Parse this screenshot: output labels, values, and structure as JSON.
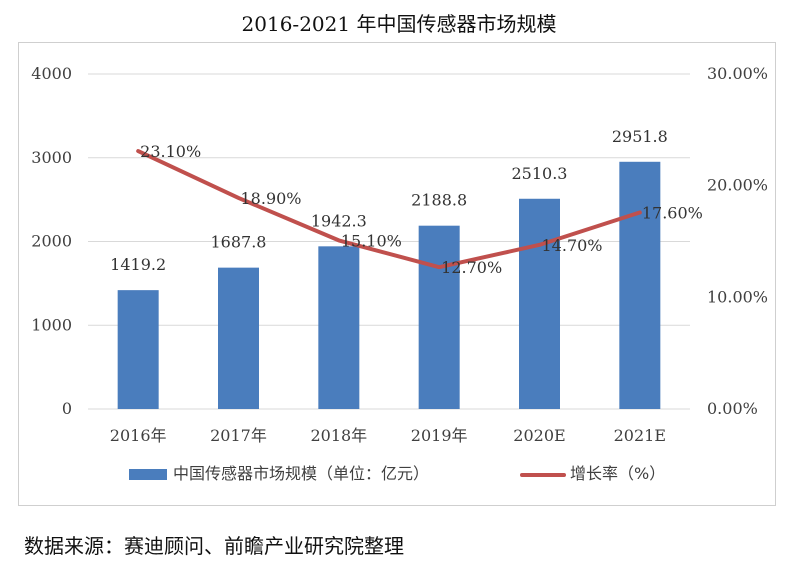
{
  "chart_data": {
    "type": "bar+line",
    "title": "2016-2021 年中国传感器市场规模",
    "categories": [
      "2016年",
      "2017年",
      "2018年",
      "2019年",
      "2020E",
      "2021E"
    ],
    "series": [
      {
        "name": "中国传感器市场规模（单位：亿元）",
        "type": "bar",
        "axis": "left",
        "color": "#4a7dbd",
        "values": [
          1419.2,
          1687.8,
          1942.3,
          2188.8,
          2510.3,
          2951.8
        ],
        "labels": [
          "1419.2",
          "1687.8",
          "1942.3",
          "2188.8",
          "2510.3",
          "2951.8"
        ]
      },
      {
        "name": "增长率（%）",
        "type": "line",
        "axis": "right",
        "color": "#c0504d",
        "values": [
          23.1,
          18.9,
          15.1,
          12.7,
          14.7,
          17.6
        ],
        "labels": [
          "23.10%",
          "18.90%",
          "15.10%",
          "12.70%",
          "14.70%",
          "17.60%"
        ]
      }
    ],
    "y_left": {
      "min": 0,
      "max": 4000,
      "ticks": [
        "0",
        "1000",
        "2000",
        "3000",
        "4000"
      ]
    },
    "y_right": {
      "min": 0,
      "max": 30,
      "ticks": [
        "0.00%",
        "10.00%",
        "20.00%",
        "30.00%"
      ]
    },
    "grid": true,
    "legend_position": "bottom"
  },
  "source": "数据来源：赛迪顾问、前瞻产业研究院整理"
}
